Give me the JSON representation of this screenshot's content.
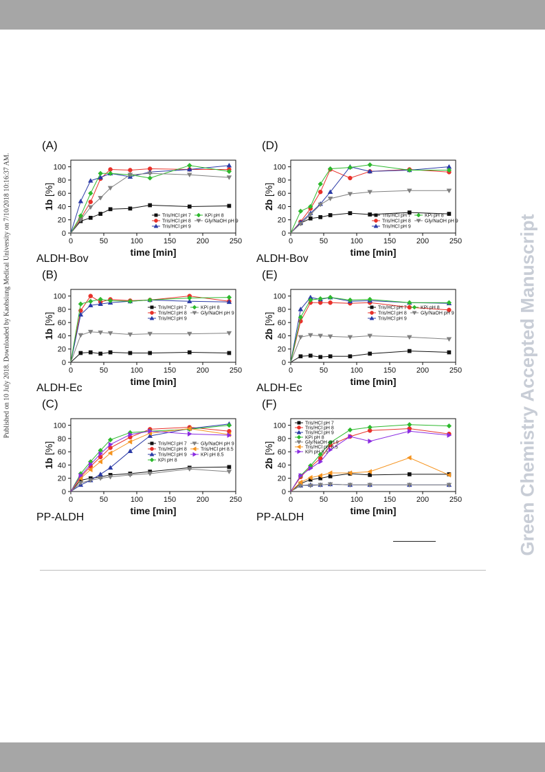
{
  "side_left": "Published on 10 July 2018. Downloaded by Kaohsiung Medical University on 7/10/2018 10:16:37 AM.",
  "side_right": "Green Chemistry Accepted Manuscript",
  "colors": {
    "band": "#a6a6a6",
    "watermark": "#c8cdd6"
  },
  "chart_data": [
    {
      "type": "line",
      "panel": "(A)",
      "label": "ALDH-Bov",
      "ylabel_bold": "1b",
      "ylabel_unit": " [%]",
      "xlabel": "time [min]",
      "xlim": [
        0,
        250
      ],
      "ylim": [
        0,
        110
      ],
      "xticks": [
        0,
        50,
        100,
        150,
        200,
        250
      ],
      "yticks": [
        0,
        20,
        40,
        60,
        80,
        100
      ],
      "legend_cols": 2,
      "legend_position": "bottom-right",
      "series": [
        {
          "name": "Tris/HCl pH 7",
          "color": "#111111",
          "marker": "square",
          "x": [
            0,
            15,
            30,
            45,
            60,
            90,
            120,
            180,
            240
          ],
          "y": [
            0,
            18,
            23,
            29,
            36,
            37,
            42,
            40,
            41
          ]
        },
        {
          "name": "Tris/HCl pH 8",
          "color": "#e8312a",
          "marker": "circle",
          "x": [
            0,
            15,
            30,
            45,
            60,
            90,
            120,
            180,
            240
          ],
          "y": [
            0,
            22,
            47,
            82,
            96,
            95,
            97,
            96,
            96
          ]
        },
        {
          "name": "Tris/HCl pH 9",
          "color": "#2a3aa6",
          "marker": "triangle-up",
          "x": [
            0,
            15,
            30,
            45,
            60,
            90,
            120,
            180,
            240
          ],
          "y": [
            0,
            48,
            79,
            84,
            90,
            85,
            92,
            96,
            102
          ]
        },
        {
          "name": "KPi pH 8",
          "color": "#2db92d",
          "marker": "diamond",
          "x": [
            0,
            15,
            30,
            45,
            60,
            90,
            120,
            180,
            240
          ],
          "y": [
            0,
            26,
            60,
            90,
            90,
            88,
            83,
            102,
            93
          ]
        },
        {
          "name": "Gly/NaOH pH 9",
          "color": "#808080",
          "marker": "triangle-down",
          "x": [
            0,
            15,
            30,
            45,
            60,
            90,
            120,
            180,
            240
          ],
          "y": [
            0,
            20,
            39,
            53,
            68,
            88,
            90,
            88,
            84
          ]
        }
      ]
    },
    {
      "type": "line",
      "panel": "(D)",
      "label": "ALDH-Bov",
      "ylabel_bold": "2b",
      "ylabel_unit": " [%]",
      "xlabel": "time [min]",
      "xlim": [
        0,
        250
      ],
      "ylim": [
        0,
        110
      ],
      "xticks": [
        0,
        50,
        100,
        150,
        200,
        250
      ],
      "yticks": [
        0,
        20,
        40,
        60,
        80,
        100
      ],
      "legend_cols": 2,
      "legend_position": "bottom-right",
      "series": [
        {
          "name": "Tris/HCl pH 7",
          "color": "#111111",
          "marker": "square",
          "x": [
            0,
            15,
            30,
            45,
            60,
            90,
            120,
            180,
            240
          ],
          "y": [
            0,
            15,
            22,
            24,
            27,
            30,
            28,
            31,
            29
          ]
        },
        {
          "name": "Tris/HCl pH 8",
          "color": "#e8312a",
          "marker": "circle",
          "x": [
            0,
            15,
            30,
            45,
            60,
            90,
            120,
            180,
            240
          ],
          "y": [
            0,
            17,
            37,
            62,
            96,
            83,
            93,
            96,
            92
          ]
        },
        {
          "name": "Tris/HCl pH 9",
          "color": "#2a3aa6",
          "marker": "triangle-up",
          "x": [
            0,
            15,
            30,
            45,
            60,
            90,
            120,
            180,
            240
          ],
          "y": [
            0,
            16,
            30,
            44,
            62,
            100,
            93,
            95,
            100
          ]
        },
        {
          "name": "KPi pH 8",
          "color": "#2db92d",
          "marker": "diamond",
          "x": [
            0,
            15,
            30,
            45,
            60,
            90,
            120,
            180,
            240
          ],
          "y": [
            0,
            33,
            40,
            74,
            97,
            99,
            103,
            95,
            95
          ]
        },
        {
          "name": "Gly/NaOH pH 9",
          "color": "#808080",
          "marker": "triangle-down",
          "x": [
            0,
            15,
            30,
            45,
            60,
            90,
            120,
            180,
            240
          ],
          "y": [
            0,
            14,
            28,
            43,
            52,
            59,
            62,
            64,
            64
          ]
        }
      ]
    },
    {
      "type": "line",
      "panel": "(B)",
      "label": "ALDH-Ec",
      "ylabel_bold": "1b",
      "ylabel_unit": " [%]",
      "xlabel": "time [min]",
      "xlim": [
        0,
        250
      ],
      "ylim": [
        0,
        110
      ],
      "xticks": [
        0,
        50,
        100,
        150,
        200,
        250
      ],
      "yticks": [
        0,
        20,
        40,
        60,
        80,
        100
      ],
      "legend_cols": 2,
      "legend_position": "center-right",
      "series": [
        {
          "name": "Tris/HCl pH 7",
          "color": "#111111",
          "marker": "square",
          "x": [
            0,
            15,
            30,
            45,
            60,
            90,
            120,
            180,
            240
          ],
          "y": [
            0,
            14,
            15,
            13,
            15,
            14,
            14,
            15,
            14
          ]
        },
        {
          "name": "Tris/HCl pH 8",
          "color": "#e8312a",
          "marker": "circle",
          "x": [
            0,
            15,
            30,
            45,
            60,
            90,
            120,
            180,
            240
          ],
          "y": [
            0,
            78,
            100,
            91,
            95,
            93,
            94,
            100,
            92
          ]
        },
        {
          "name": "Tris/HCl pH 9",
          "color": "#2a3aa6",
          "marker": "triangle-up",
          "x": [
            0,
            15,
            30,
            45,
            60,
            90,
            120,
            180,
            240
          ],
          "y": [
            0,
            72,
            86,
            88,
            90,
            92,
            94,
            92,
            91
          ]
        },
        {
          "name": "KPi pH 8",
          "color": "#2db92d",
          "marker": "diamond",
          "x": [
            0,
            15,
            30,
            45,
            60,
            90,
            120,
            180,
            240
          ],
          "y": [
            0,
            88,
            92,
            95,
            93,
            92,
            94,
            97,
            98
          ]
        },
        {
          "name": "Gly/NaOH pH 9",
          "color": "#808080",
          "marker": "triangle-down",
          "x": [
            0,
            15,
            30,
            45,
            60,
            90,
            120,
            180,
            240
          ],
          "y": [
            0,
            41,
            46,
            45,
            44,
            42,
            43,
            43,
            44
          ]
        }
      ]
    },
    {
      "type": "line",
      "panel": "(E)",
      "label": "ALDH-Ec",
      "ylabel_bold": "2b",
      "ylabel_unit": " [%]",
      "xlabel": "time [min]",
      "xlim": [
        0,
        250
      ],
      "ylim": [
        0,
        110
      ],
      "xticks": [
        0,
        50,
        100,
        150,
        200,
        250
      ],
      "yticks": [
        0,
        20,
        40,
        60,
        80,
        100
      ],
      "legend_cols": 2,
      "legend_position": "center-right",
      "series": [
        {
          "name": "Tris/HCl pH 7",
          "color": "#111111",
          "marker": "square",
          "x": [
            0,
            15,
            30,
            45,
            60,
            90,
            120,
            180,
            240
          ],
          "y": [
            0,
            9,
            10,
            8,
            9,
            9,
            13,
            17,
            15
          ]
        },
        {
          "name": "Tris/HCl pH 8",
          "color": "#e8312a",
          "marker": "circle",
          "x": [
            0,
            15,
            30,
            45,
            60,
            90,
            120,
            180,
            240
          ],
          "y": [
            0,
            62,
            90,
            90,
            90,
            89,
            90,
            83,
            79
          ]
        },
        {
          "name": "Tris/HCl pH 9",
          "color": "#2a3aa6",
          "marker": "triangle-up",
          "x": [
            0,
            15,
            30,
            45,
            60,
            90,
            120,
            180,
            240
          ],
          "y": [
            0,
            80,
            98,
            95,
            98,
            92,
            93,
            90,
            89
          ]
        },
        {
          "name": "KPi pH 8",
          "color": "#2db92d",
          "marker": "diamond",
          "x": [
            0,
            15,
            30,
            45,
            60,
            90,
            120,
            180,
            240
          ],
          "y": [
            0,
            68,
            94,
            96,
            98,
            94,
            95,
            90,
            90
          ]
        },
        {
          "name": "Gly/NaOH pH 9",
          "color": "#808080",
          "marker": "triangle-down",
          "x": [
            0,
            15,
            30,
            45,
            60,
            90,
            120,
            180,
            240
          ],
          "y": [
            0,
            38,
            41,
            40,
            39,
            38,
            40,
            38,
            35
          ]
        }
      ]
    },
    {
      "type": "line",
      "panel": "(C)",
      "label": "PP-ALDH",
      "ylabel_bold": "1b",
      "ylabel_unit": " [%]",
      "xlabel": "time [min]",
      "xlim": [
        0,
        250
      ],
      "ylim": [
        0,
        110
      ],
      "xticks": [
        0,
        50,
        100,
        150,
        200,
        250
      ],
      "yticks": [
        0,
        20,
        40,
        60,
        80,
        100
      ],
      "legend_cols": 2,
      "legend_position": "center-right",
      "series": [
        {
          "name": "Tris/HCl pH 7",
          "color": "#111111",
          "marker": "square",
          "x": [
            0,
            15,
            30,
            45,
            60,
            90,
            120,
            180,
            240
          ],
          "y": [
            0,
            17,
            20,
            22,
            25,
            27,
            30,
            36,
            37
          ]
        },
        {
          "name": "Tris/HCl pH 8",
          "color": "#e8312a",
          "marker": "circle",
          "x": [
            0,
            15,
            30,
            45,
            60,
            90,
            120,
            180,
            240
          ],
          "y": [
            0,
            22,
            38,
            52,
            66,
            82,
            94,
            97,
            91
          ]
        },
        {
          "name": "Tris/HCl pH 9",
          "color": "#2a3aa6",
          "marker": "triangle-up",
          "x": [
            0,
            15,
            30,
            45,
            60,
            90,
            120,
            180,
            240
          ],
          "y": [
            0,
            10,
            17,
            26,
            36,
            61,
            84,
            95,
            102
          ]
        },
        {
          "name": "KPi pH 8",
          "color": "#2db92d",
          "marker": "diamond",
          "x": [
            0,
            15,
            30,
            45,
            60,
            90,
            120,
            180,
            240
          ],
          "y": [
            0,
            27,
            45,
            62,
            78,
            89,
            91,
            94,
            100
          ]
        },
        {
          "name": "Gly/NaOH pH 9",
          "color": "#808080",
          "marker": "triangle-down",
          "x": [
            0,
            15,
            30,
            45,
            60,
            90,
            120,
            180,
            240
          ],
          "y": [
            0,
            13,
            17,
            20,
            22,
            25,
            27,
            34,
            30
          ]
        },
        {
          "name": "Tris/HCl pH 8.5",
          "color": "#f5931e",
          "marker": "triangle-left",
          "x": [
            0,
            15,
            30,
            45,
            60,
            90,
            120,
            180,
            240
          ],
          "y": [
            0,
            20,
            33,
            45,
            58,
            75,
            88,
            95,
            86
          ]
        },
        {
          "name": "KPi pH 8.5",
          "color": "#8a2be2",
          "marker": "triangle-right",
          "x": [
            0,
            15,
            30,
            45,
            60,
            90,
            120,
            180,
            240
          ],
          "y": [
            0,
            24,
            41,
            57,
            71,
            86,
            91,
            87,
            85
          ]
        }
      ]
    },
    {
      "type": "line",
      "panel": "(F)",
      "label": "PP-ALDH",
      "ylabel_bold": "2b",
      "ylabel_unit": " [%]",
      "xlabel": "time [min]",
      "xlim": [
        0,
        250
      ],
      "ylim": [
        0,
        110
      ],
      "xticks": [
        0,
        50,
        100,
        150,
        200,
        250
      ],
      "yticks": [
        0,
        20,
        40,
        60,
        80,
        100
      ],
      "legend_cols": 1,
      "legend_position": "top-left",
      "series": [
        {
          "name": "Tris/HCl pH 7",
          "color": "#111111",
          "marker": "square",
          "x": [
            0,
            15,
            30,
            45,
            60,
            90,
            120,
            180,
            240
          ],
          "y": [
            0,
            12,
            18,
            20,
            23,
            27,
            25,
            26,
            26
          ]
        },
        {
          "name": "Tris/HCl pH 8",
          "color": "#e8312a",
          "marker": "circle",
          "x": [
            0,
            15,
            30,
            45,
            60,
            90,
            120,
            180,
            240
          ],
          "y": [
            0,
            22,
            37,
            50,
            70,
            83,
            92,
            95,
            87
          ]
        },
        {
          "name": "Tris/HCl pH 9",
          "color": "#2a3aa6",
          "marker": "triangle-up",
          "x": [
            0,
            15,
            30,
            45,
            60,
            90,
            120,
            180,
            240
          ],
          "y": [
            0,
            9,
            10,
            10,
            11,
            10,
            10,
            10,
            10
          ]
        },
        {
          "name": "KPi pH 8",
          "color": "#2db92d",
          "marker": "diamond",
          "x": [
            0,
            15,
            30,
            45,
            60,
            90,
            120,
            180,
            240
          ],
          "y": [
            0,
            24,
            39,
            56,
            74,
            93,
            97,
            101,
            99
          ]
        },
        {
          "name": "Gly/NaOH pH 9",
          "color": "#808080",
          "marker": "triangle-down",
          "x": [
            0,
            15,
            30,
            45,
            60,
            90,
            120,
            180,
            240
          ],
          "y": [
            0,
            9,
            9,
            10,
            11,
            10,
            10,
            10,
            10
          ]
        },
        {
          "name": "Tris/HCl pH 8.5",
          "color": "#f5931e",
          "marker": "triangle-left",
          "x": [
            0,
            15,
            30,
            45,
            60,
            90,
            120,
            180,
            240
          ],
          "y": [
            0,
            14,
            21,
            24,
            28,
            28,
            30,
            51,
            25
          ]
        },
        {
          "name": "KPi pH 8.5",
          "color": "#8a2be2",
          "marker": "triangle-right",
          "x": [
            0,
            15,
            30,
            45,
            60,
            90,
            120,
            180,
            240
          ],
          "y": [
            0,
            24,
            35,
            45,
            63,
            83,
            76,
            91,
            85
          ]
        }
      ]
    }
  ]
}
